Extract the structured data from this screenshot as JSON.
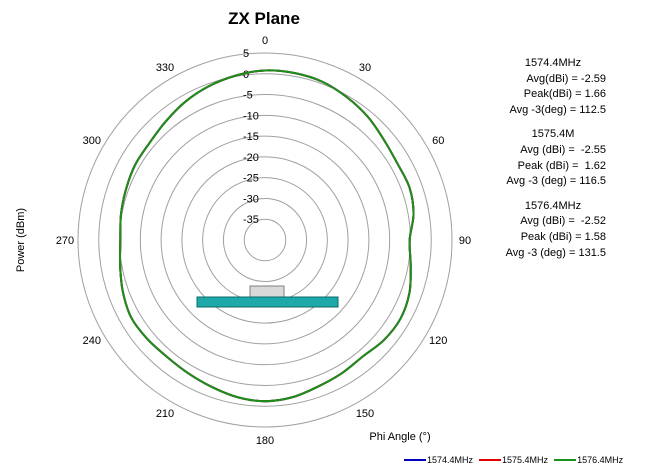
{
  "chart_data": {
    "type": "polar-line",
    "title": "ZX Plane",
    "ylabel": "Power (dBm)",
    "xlabel": "Phi Angle (°)",
    "radial_ticks": [
      "5",
      "0",
      "-5",
      "-10",
      "-15",
      "-20",
      "-25",
      "-30",
      "-35"
    ],
    "radial_range": [
      -40,
      5
    ],
    "angle_ticks": [
      "0",
      "30",
      "60",
      "90",
      "120",
      "150",
      "180",
      "210",
      "240",
      "270",
      "300",
      "330"
    ],
    "angle_deg": [
      0,
      10,
      20,
      30,
      40,
      50,
      60,
      70,
      80,
      90,
      100,
      110,
      120,
      130,
      140,
      150,
      160,
      170,
      180,
      190,
      200,
      210,
      220,
      230,
      240,
      250,
      260,
      270,
      280,
      290,
      300,
      310,
      320,
      330,
      340,
      350
    ],
    "series": [
      {
        "name": "1574.4MHz",
        "color": "#0000c0",
        "values": [
          0.8,
          0.8,
          0.5,
          -0.4,
          -1.4,
          -2.6,
          -3.2,
          -3.0,
          -3.7,
          -5.2,
          -4.4,
          -3.0,
          -2.3,
          -2.6,
          -3.4,
          -3.0,
          -2.5,
          -1.6,
          -1.2,
          -1.6,
          -2.4,
          -3.0,
          -3.3,
          -3.0,
          -2.8,
          -3.6,
          -4.6,
          -5.2,
          -4.8,
          -4.4,
          -3.9,
          -3.7,
          -2.8,
          -1.6,
          -0.6,
          0.2
        ]
      },
      {
        "name": "1575.4MHz",
        "color": "#e00000",
        "values": [
          0.8,
          0.8,
          0.5,
          -0.4,
          -1.4,
          -2.6,
          -3.2,
          -3.0,
          -3.7,
          -5.2,
          -4.4,
          -3.0,
          -2.3,
          -2.6,
          -3.4,
          -3.0,
          -2.5,
          -1.6,
          -1.2,
          -1.6,
          -2.4,
          -3.0,
          -3.3,
          -3.0,
          -2.8,
          -3.6,
          -4.6,
          -5.2,
          -4.8,
          -4.4,
          -3.9,
          -3.7,
          -2.8,
          -1.6,
          -0.6,
          0.2
        ]
      },
      {
        "name": "1576.4MHz",
        "color": "#1a8f1a",
        "values": [
          0.8,
          0.8,
          0.5,
          -0.4,
          -1.4,
          -2.6,
          -3.2,
          -3.0,
          -3.7,
          -5.2,
          -4.4,
          -3.0,
          -2.3,
          -2.6,
          -3.4,
          -3.0,
          -2.5,
          -1.6,
          -1.2,
          -1.6,
          -2.4,
          -3.0,
          -3.3,
          -3.0,
          -2.8,
          -3.6,
          -4.6,
          -5.2,
          -4.8,
          -4.4,
          -3.9,
          -3.7,
          -2.8,
          -1.6,
          -0.6,
          0.2
        ]
      }
    ],
    "annotations": [
      {
        "header": "1574.4MHz",
        "rows": [
          "Avg(dBi) = -2.59",
          "Peak(dBi) = 1.66",
          "Avg -3(deg) = 112.5"
        ]
      },
      {
        "header": "1575.4M",
        "rows": [
          "Avg (dBi) =  -2.55",
          "Peak (dBi) =  1.62",
          "Avg -3 (deg) = 116.5"
        ]
      },
      {
        "header": "1576.4MHz",
        "rows": [
          "Avg (dBi) =  -2.52",
          "Peak (dBi) = 1.58",
          "Avg -3 (deg) = 131.5"
        ]
      }
    ],
    "grid": true,
    "legend_position": "bottom-right"
  },
  "colors": {
    "grid": "#a0a0a0",
    "board": "#1fa8a8",
    "board_edge": "#0b6b6b",
    "module": "#d9d9d9"
  }
}
